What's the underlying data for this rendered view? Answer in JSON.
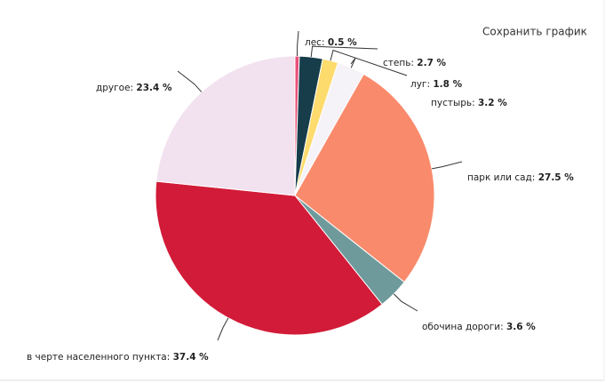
{
  "save_button": "Сохранить график",
  "chart_data": {
    "type": "pie",
    "categories": [
      "лес:",
      "степь:",
      "луг:",
      "пустырь:",
      "парк или сад:",
      "обочина дороги:",
      "в черте населенного пункта:",
      "другое:"
    ],
    "values": [
      0.5,
      2.7,
      1.8,
      3.2,
      27.5,
      3.6,
      37.4,
      23.4
    ],
    "value_labels": [
      "0.5 %",
      "2.7 %",
      "1.8 %",
      "3.2 %",
      "27.5 %",
      "3.6 %",
      "37.4 %",
      "23.4 %"
    ],
    "colors": [
      "#e8507a",
      "#173d4a",
      "#fddb6d",
      "#f6f3f8",
      "#f98b6c",
      "#6f9a9b",
      "#d21b38",
      "#f2e1ef"
    ]
  }
}
